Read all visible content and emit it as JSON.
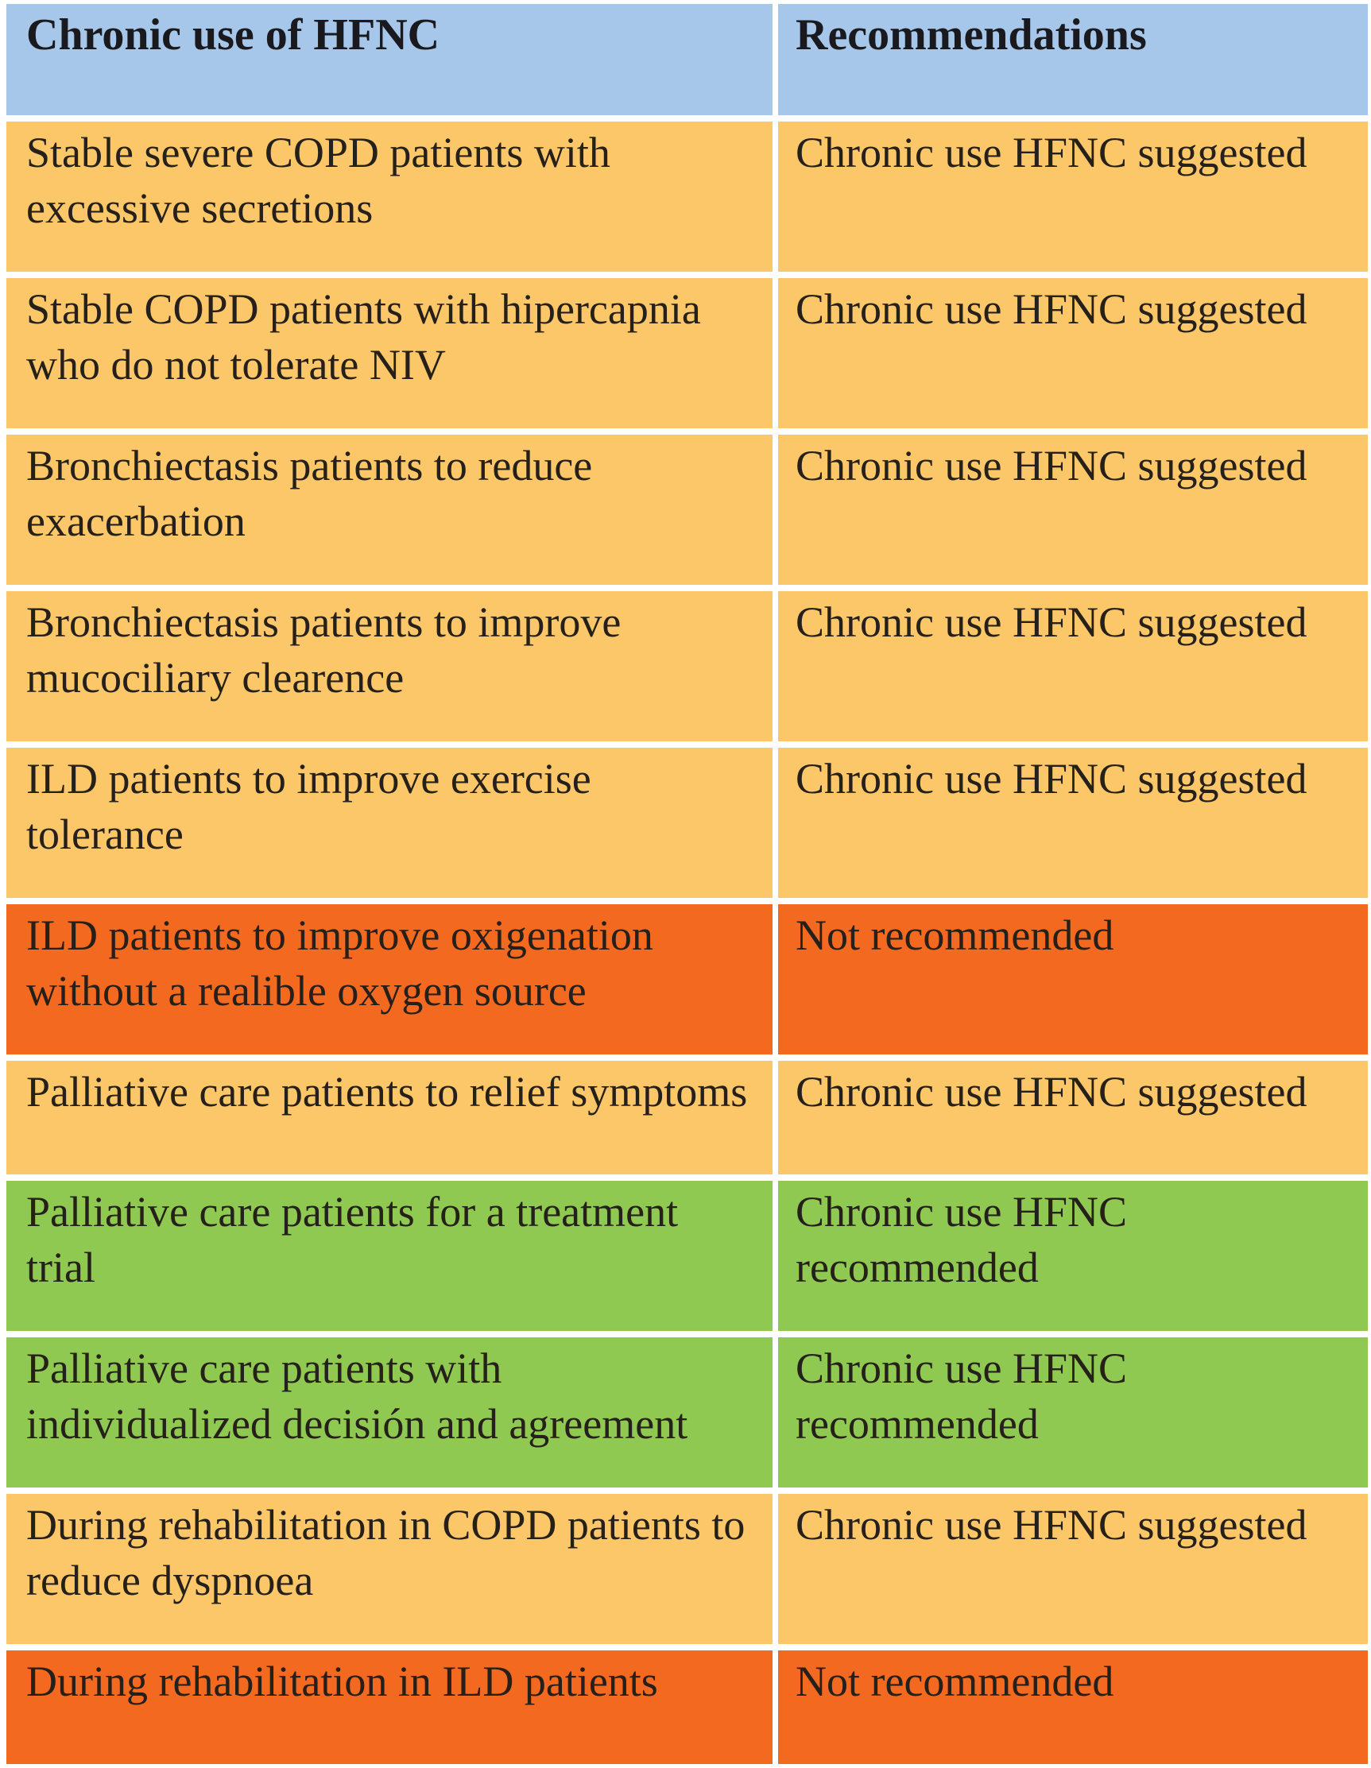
{
  "table": {
    "columns": [
      {
        "label": "Chronic use of HFNC"
      },
      {
        "label": "Recommendations"
      }
    ],
    "rows": [
      {
        "indication": "Stable severe COPD patients with excessive secretions",
        "recommendation": "Chronic use HFNC suggested",
        "status": "suggested"
      },
      {
        "indication": "Stable COPD patients with hipercapnia who do not tolerate NIV",
        "recommendation": "Chronic use HFNC suggested",
        "status": "suggested"
      },
      {
        "indication": "Bronchiectasis patients to reduce exacerbation",
        "recommendation": "Chronic use HFNC suggested",
        "status": "suggested"
      },
      {
        "indication": "Bronchiectasis patients  to improve mucociliary clearence",
        "recommendation": "Chronic use HFNC suggested",
        "status": "suggested"
      },
      {
        "indication": "ILD patients to improve exercise tolerance",
        "recommendation": "Chronic use HFNC suggested",
        "status": "suggested"
      },
      {
        "indication": "ILD patients to improve oxigenation without a realible oxygen source",
        "recommendation": "Not recommended",
        "status": "not_recommended"
      },
      {
        "indication": "Palliative care patients to relief symptoms",
        "recommendation": "Chronic use HFNC suggested",
        "status": "suggested"
      },
      {
        "indication": "Palliative care patients for a treatment trial",
        "recommendation": "Chronic use HFNC recommended",
        "status": "recommended"
      },
      {
        "indication": "Palliative care patients with individualized decisión and agreement",
        "recommendation": "Chronic use HFNC recommended",
        "status": "recommended"
      },
      {
        "indication": "During rehabilitation in COPD patients to reduce dyspnoea",
        "recommendation": "Chronic use HFNC suggested",
        "status": "suggested"
      },
      {
        "indication": "During rehabilitation in ILD patients",
        "recommendation": "Not recommended",
        "status": "not_recommended"
      }
    ]
  },
  "colors": {
    "header_bg": "#a6c7e9",
    "suggested_bg": "#fcc768",
    "recommended_bg": "#8fc952",
    "not_recommended_bg": "#f2691f",
    "text": "#26201a",
    "header_text": "#1a1a1e",
    "page_bg": "#ffffff"
  }
}
